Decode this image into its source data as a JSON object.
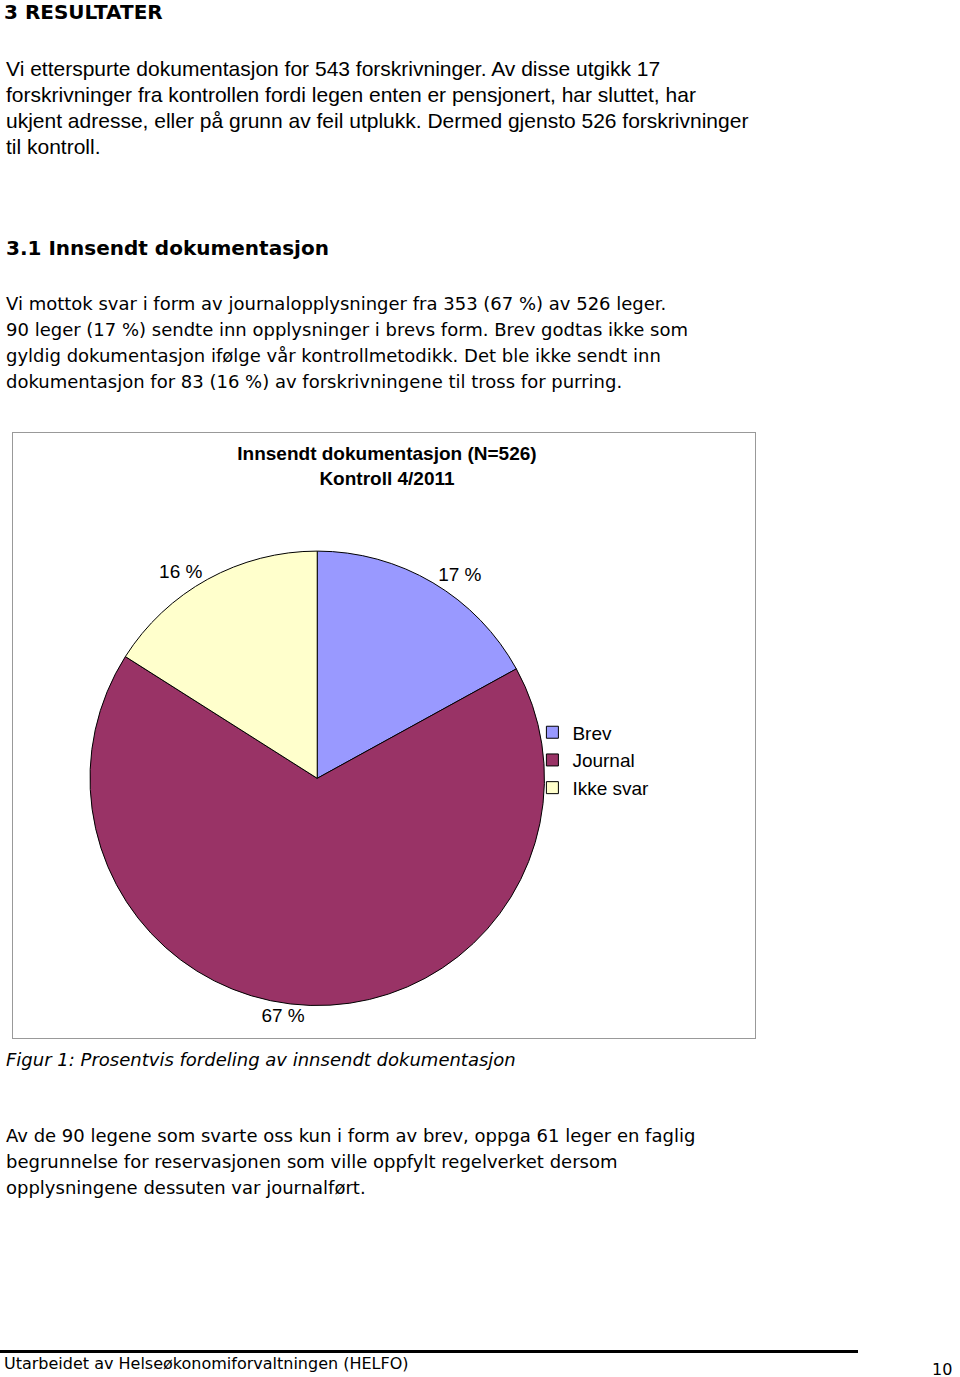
{
  "heading": "3 RESULTATER",
  "intro": [
    "Vi etterspurte dokumentasjon for 543 forskrivninger. Av disse utgikk 17",
    "forskrivninger fra kontrollen fordi legen enten er pensjonert, har sluttet, har",
    "ukjent adresse, eller på grunn av feil utplukk. Dermed gjensto 526 forskrivninger",
    "til kontroll."
  ],
  "subheading": "3.1 Innsendt dokumentasjon",
  "section_text": [
    "Vi mottok svar i form av journalopplysninger fra 353 (67 %) av 526 leger.",
    "90 leger (17 %) sendte inn opplysninger i brevs form. Brev godtas ikke som",
    "gyldig dokumentasjon ifølge vår kontrollmetodikk. Det ble ikke sendt inn",
    "dokumentasjon for 83 (16 %) av forskrivningene til tross for purring."
  ],
  "chart_data": {
    "type": "pie",
    "title": "Innsendt dokumentasjon (N=526)",
    "subtitle": "Kontroll 4/2011",
    "categories": [
      "Brev",
      "Journal",
      "Ikke svar"
    ],
    "values": [
      17,
      67,
      16
    ],
    "value_labels": [
      "17 %",
      "67 %",
      "16 %"
    ],
    "colors": [
      "#9999ff",
      "#993366",
      "#ffffcc"
    ],
    "data_labels": true,
    "legend": "right"
  },
  "caption": "Figur 1: Prosentvis fordeling av innsendt dokumentasjon",
  "closing_text": [
    "Av de 90 legene som svarte oss kun i form av brev, oppga 61 leger en faglig",
    "begrunnelse for reservasjonen som ville oppfylt regelverket dersom",
    "opplysningene dessuten var journalført."
  ],
  "footer": "Utarbeidet av Helseøkonomiforvaltningen (HELFO)",
  "page_number": "10"
}
